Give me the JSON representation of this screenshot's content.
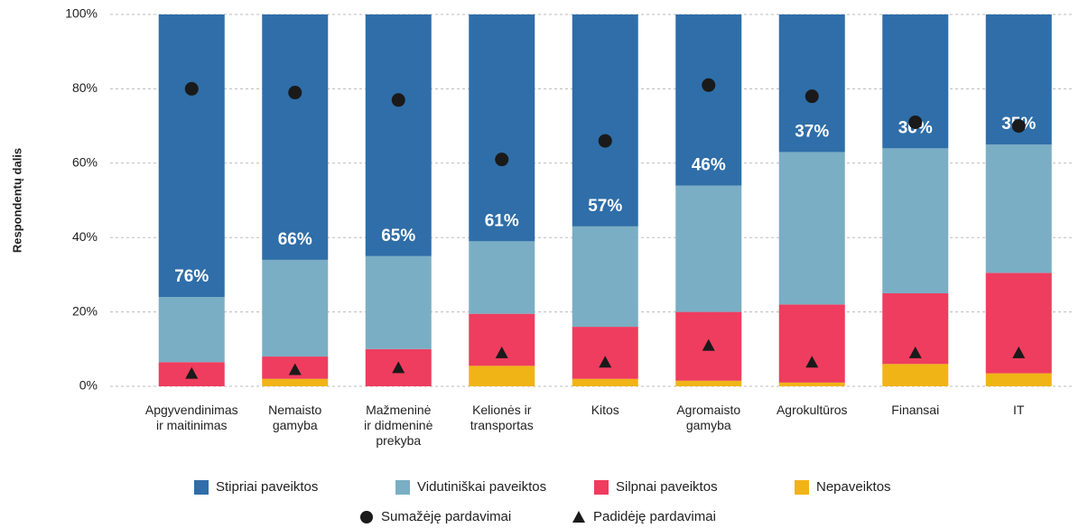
{
  "chart_data": {
    "type": "bar",
    "stacked": true,
    "y_label": "Respondentų dalis",
    "categories": [
      "Apgyvendinimas\nir maitinimas",
      "Nemaisto\ngamyba",
      "Mažmeninė\nir didmeninė\nprekyba",
      "Kelionės ir\ntransportas",
      "Kitos",
      "Agromaisto\ngamyba",
      "Agrokultūros",
      "Finansai",
      "IT"
    ],
    "series": [
      {
        "name": "Nepaveiktos",
        "color": "#f0b416",
        "values": [
          0,
          2,
          0,
          5.5,
          2,
          1.5,
          1,
          6,
          3.5
        ]
      },
      {
        "name": "Silpnai paveiktos",
        "color": "#ee3d5e",
        "values": [
          6.5,
          6,
          10,
          14,
          14,
          18.5,
          21,
          19,
          27
        ]
      },
      {
        "name": "Vidutiniškai paveiktos",
        "color": "#7aaec4",
        "values": [
          17.5,
          26,
          25,
          19.5,
          27,
          34,
          41,
          39,
          34.5
        ]
      },
      {
        "name": "Stipriai paveiktos",
        "color": "#2f6ea8",
        "values": [
          76,
          66,
          65,
          61,
          57,
          46,
          37,
          36,
          35
        ],
        "value_labels": [
          "76%",
          "66%",
          "65%",
          "61%",
          "57%",
          "46%",
          "37%",
          "36%",
          "35%"
        ]
      },
      {
        "name": "Sumažėję pardavimai",
        "type": "scatter",
        "marker": "circle",
        "color": "#1a1a1a",
        "values": [
          80,
          79,
          77,
          61,
          66,
          81,
          78,
          71,
          70
        ]
      },
      {
        "name": "Padidėję pardavimai",
        "type": "scatter",
        "marker": "triangle",
        "color": "#1a1a1a",
        "values": [
          3.5,
          4.5,
          5,
          9,
          6.5,
          11,
          6.5,
          9,
          9
        ]
      }
    ],
    "legend_order": [
      3,
      2,
      1,
      0,
      4,
      5
    ],
    "ylim": [
      0,
      100
    ],
    "yticks": [
      {
        "value": 0,
        "label": "0%"
      },
      {
        "value": 20,
        "label": "20%"
      },
      {
        "value": 40,
        "label": "40%"
      },
      {
        "value": 60,
        "label": "60%"
      },
      {
        "value": 80,
        "label": "80%"
      },
      {
        "value": 100,
        "label": "100%"
      }
    ],
    "grid": true
  }
}
